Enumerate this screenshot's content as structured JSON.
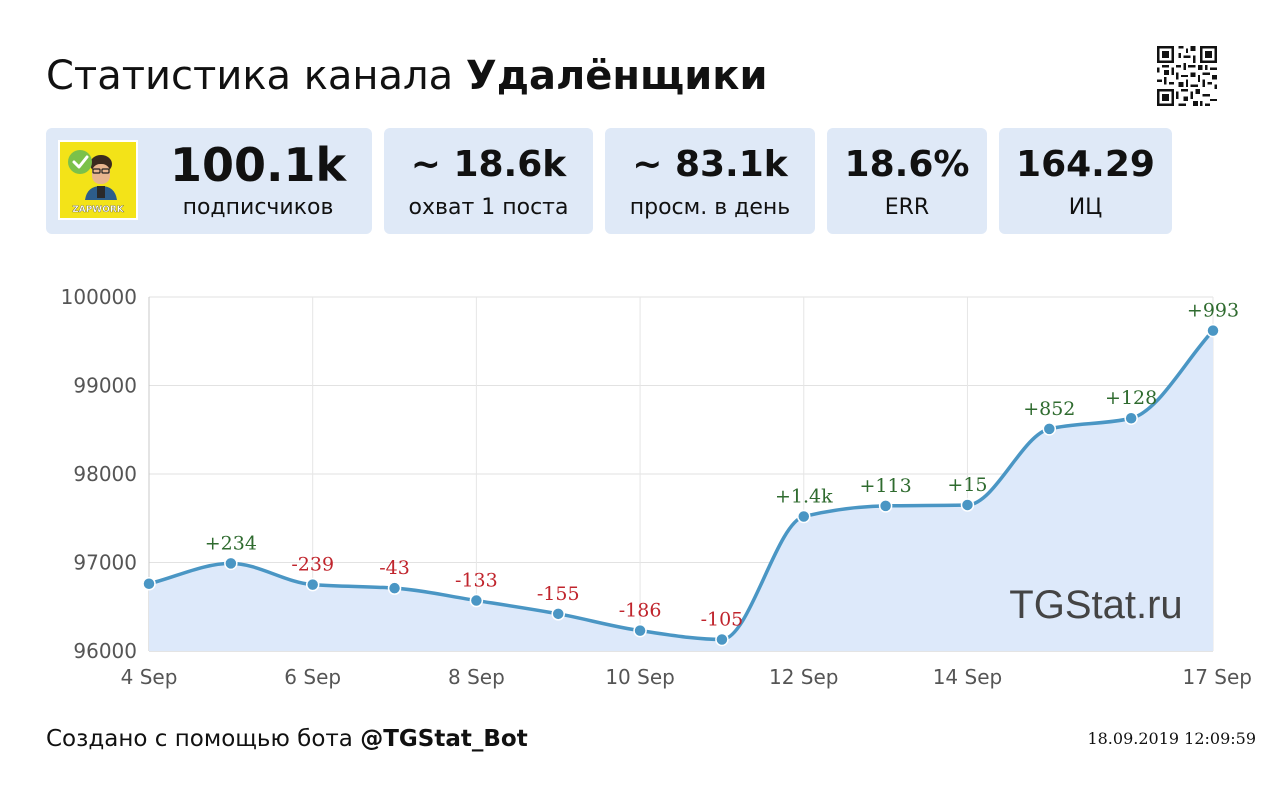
{
  "header": {
    "title_prefix": "Статистика канала",
    "channel_name": "Удалёнщики"
  },
  "stats": {
    "subscribers": {
      "value": "100.1k",
      "label": "подписчиков"
    },
    "reach": {
      "value": "~ 18.6k",
      "label": "охват 1 поста"
    },
    "daily_views": {
      "value": "~ 83.1k",
      "label": "просм. в день"
    },
    "err": {
      "value": "18.6%",
      "label": "ERR"
    },
    "index": {
      "value": "164.29",
      "label": "ИЦ"
    }
  },
  "avatar": {
    "text": "ZAPWORK",
    "bg": "#f3e318"
  },
  "watermark": "TGStat.ru",
  "footer": {
    "prefix": "Создано с помощью бота",
    "bot": "@TGStat_Bot",
    "timestamp": "18.09.2019 12:09:59"
  },
  "colors": {
    "line": "#4a96c4",
    "area": "#dde9fa",
    "positive": "#2f6b2f",
    "negative": "#c0242c",
    "card_bg": "#dfe9f7"
  },
  "chart_data": {
    "type": "area",
    "x": [
      "4 Sep",
      "5 Sep",
      "6 Sep",
      "7 Sep",
      "8 Sep",
      "9 Sep",
      "10 Sep",
      "11 Sep",
      "12 Sep",
      "13 Sep",
      "14 Sep",
      "15 Sep",
      "16 Sep",
      "17 Sep"
    ],
    "x_tick_labels": [
      "4 Sep",
      "6 Sep",
      "8 Sep",
      "10 Sep",
      "12 Sep",
      "14 Sep",
      "17 Sep"
    ],
    "series": [
      {
        "values": [
          96760,
          96990,
          96750,
          96710,
          96570,
          96420,
          96230,
          96130,
          97520,
          97640,
          97650,
          98510,
          98630,
          99620
        ],
        "labels": [
          "",
          "+234",
          "-239",
          "-43",
          "-133",
          "-155",
          "-186",
          "-105",
          "+1.4k",
          "+113",
          "+15",
          "+852",
          "+128",
          "+993"
        ]
      }
    ],
    "y_ticks": [
      96000,
      97000,
      98000,
      99000,
      100000
    ],
    "ylim": [
      96000,
      100000
    ],
    "grid": true,
    "legend": "none"
  }
}
